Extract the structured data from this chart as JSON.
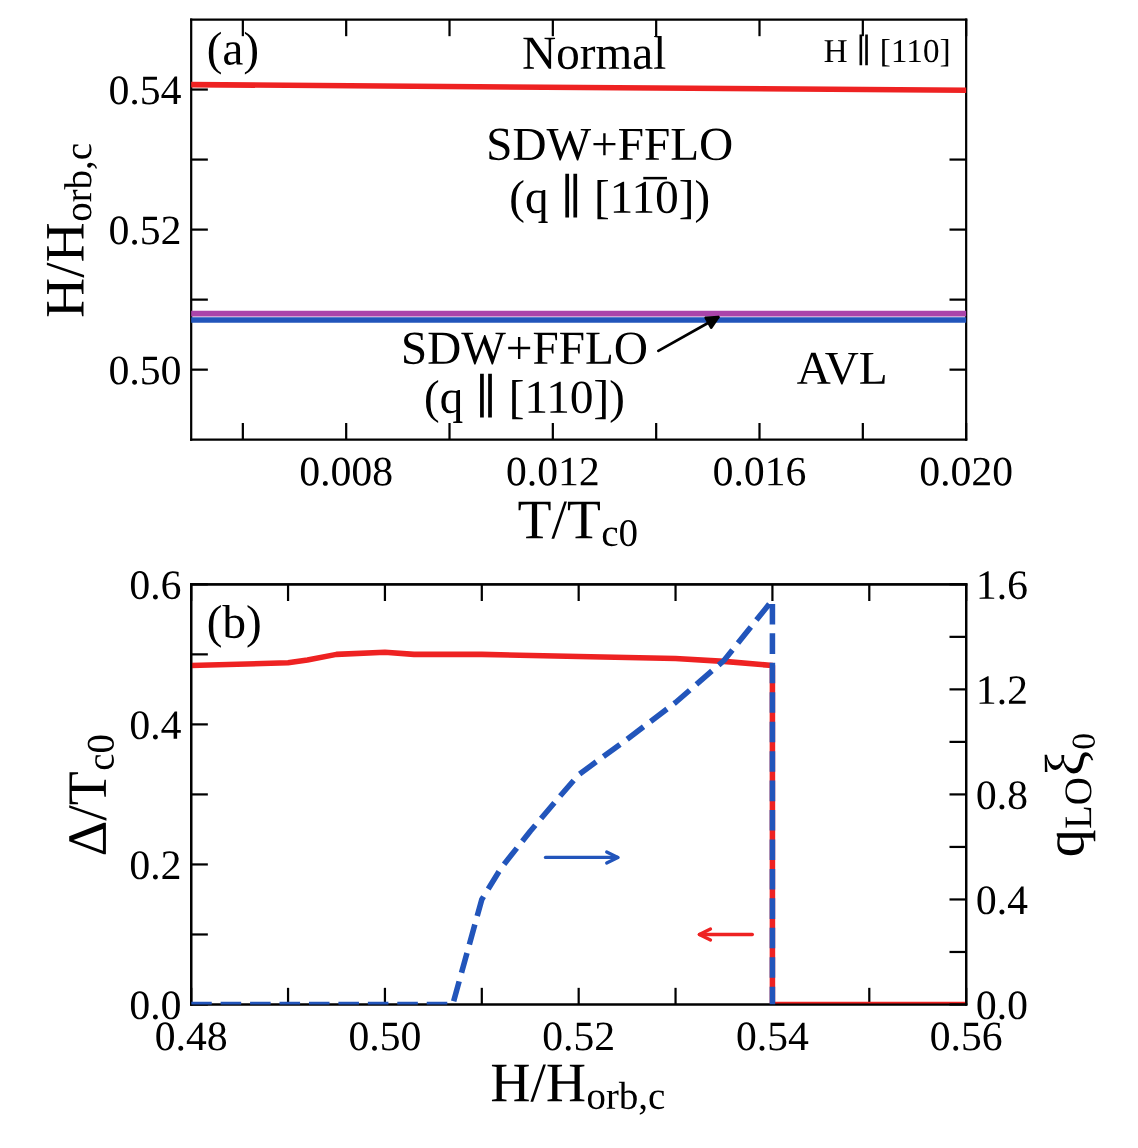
{
  "chart_data": [
    {
      "type": "line",
      "xlabel": "T/T$_{c0}$",
      "ylabel": "H/H$_{orb,c}$",
      "xlim": [
        0.005,
        0.02
      ],
      "xticks": [
        {
          "value": 0.006,
          "label": null
        },
        0.008,
        {
          "value": 0.01,
          "label": null
        },
        0.012,
        {
          "value": 0.014,
          "label": null
        },
        0.016,
        {
          "value": 0.018,
          "label": null
        },
        {
          "value": 0.02,
          "label": "0.020"
        }
      ],
      "ylim": [
        0.49,
        0.55
      ],
      "yticks": [
        {
          "value": 0.5,
          "label": "0.50"
        },
        {
          "value": 0.51,
          "label": null
        },
        0.52,
        {
          "value": 0.53,
          "label": null
        },
        0.54
      ],
      "x": [
        0.005,
        0.02
      ],
      "series": [
        {
          "color": "#ee2222",
          "values": [
            0.5407,
            0.5399
          ]
        },
        {
          "color": "#aa44aa",
          "values": [
            0.508,
            0.508
          ]
        },
        {
          "color": "#2255bb",
          "values": [
            0.5071,
            0.5071
          ]
        }
      ],
      "annotations": [
        "(a)",
        "Normal",
        "H ∥ [110]",
        "SDW+FFLO\n(q ∥ [11̅0])",
        "AVL",
        {
          "text": "SDW+FFLO\n(q ∥ [110])",
          "x": 0.0153,
          "y": 0.5079
        }
      ],
      "grid": false,
      "legend": false
    },
    {
      "type": "line",
      "xlabel": "H/H$_{orb,c}$",
      "ylabel": "Δ/T$_{c0}$",
      "y2label": "q$_{LO}$ξ₀",
      "xlim": [
        0.48,
        0.56
      ],
      "xticks": [
        0.48,
        {
          "value": 0.49,
          "label": null
        },
        {
          "value": 0.5,
          "label": "0.50"
        },
        {
          "value": 0.51,
          "label": null
        },
        0.52,
        {
          "value": 0.53,
          "label": null
        },
        0.54,
        {
          "value": 0.55,
          "label": null
        },
        0.56
      ],
      "ylim": [
        0.0,
        0.6
      ],
      "yticks": [
        {
          "value": 0.0,
          "label": "0.0"
        },
        {
          "value": 0.1,
          "label": null
        },
        0.2,
        {
          "value": 0.3,
          "label": null
        },
        0.4,
        {
          "value": 0.5,
          "label": null
        },
        0.6
      ],
      "y2lim": [
        0.0,
        1.6
      ],
      "y2ticks": [
        {
          "value": 0.0,
          "label": "0.0"
        },
        {
          "value": 0.2,
          "label": null
        },
        0.4,
        {
          "value": 0.6,
          "label": null
        },
        0.8,
        {
          "value": 1.0,
          "label": null
        },
        1.2,
        {
          "value": 1.4,
          "label": null
        },
        1.6
      ],
      "series": [
        {
          "color": "#ee2222",
          "line_style": "solid",
          "x": [
            0.48,
            0.49,
            0.492,
            0.495,
            0.5,
            0.503,
            0.51,
            0.52,
            0.53,
            0.535,
            0.54,
            0.54,
            0.56
          ],
          "values": [
            0.484,
            0.488,
            0.492,
            0.5,
            0.503,
            0.5,
            0.5,
            0.497,
            0.494,
            0.49,
            0.484,
            0.0,
            0.0
          ]
        },
        {
          "color": "#2255bb",
          "line_style": "dashed",
          "axis": "y2",
          "x": [
            0.48,
            0.507,
            0.51,
            0.512,
            0.515,
            0.518,
            0.52,
            0.525,
            0.53,
            0.535,
            0.54,
            0.54
          ],
          "values": [
            0.0,
            0.0,
            0.4,
            0.52,
            0.66,
            0.79,
            0.875,
            1.01,
            1.15,
            1.31,
            1.54,
            0.0
          ]
        }
      ],
      "annotations": [
        "(b)"
      ],
      "grid": false,
      "legend": false
    }
  ]
}
